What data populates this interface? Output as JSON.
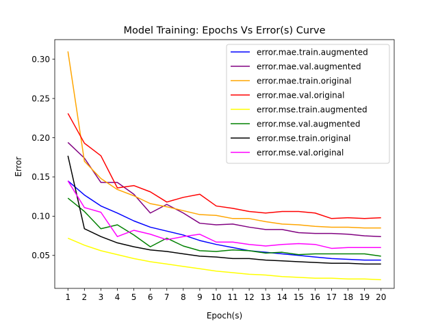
{
  "chart_data": {
    "type": "line",
    "title": "Model Training: Epochs Vs Error(s) Curve",
    "xlabel": "Epoch(s)",
    "ylabel": "Error",
    "x": [
      1,
      2,
      3,
      4,
      5,
      6,
      7,
      8,
      9,
      10,
      11,
      12,
      13,
      14,
      15,
      16,
      17,
      18,
      19,
      20
    ],
    "xlim": [
      0.2,
      20.8
    ],
    "ylim": [
      0.008,
      0.325
    ],
    "yticks": [
      0.05,
      0.1,
      0.15,
      0.2,
      0.25,
      0.3
    ],
    "ytick_labels": [
      "0.05",
      "0.10",
      "0.15",
      "0.20",
      "0.25",
      "0.30"
    ],
    "grid": false,
    "legend_position": "top-right",
    "series": [
      {
        "name": "error.mae.train.augmented",
        "color": "#0000ff",
        "values": [
          0.145,
          0.127,
          0.113,
          0.104,
          0.094,
          0.086,
          0.081,
          0.076,
          0.069,
          0.064,
          0.06,
          0.056,
          0.054,
          0.052,
          0.05,
          0.048,
          0.046,
          0.045,
          0.044,
          0.044
        ]
      },
      {
        "name": "error.mae.val.augmented",
        "color": "#800080",
        "values": [
          0.194,
          0.174,
          0.143,
          0.143,
          0.128,
          0.104,
          0.115,
          0.104,
          0.091,
          0.089,
          0.09,
          0.086,
          0.083,
          0.083,
          0.079,
          0.078,
          0.078,
          0.077,
          0.075,
          0.074
        ]
      },
      {
        "name": "error.mae.train.original",
        "color": "#ffa500",
        "values": [
          0.31,
          0.17,
          0.148,
          0.134,
          0.126,
          0.116,
          0.112,
          0.107,
          0.102,
          0.101,
          0.097,
          0.097,
          0.093,
          0.09,
          0.089,
          0.087,
          0.086,
          0.086,
          0.085,
          0.085
        ]
      },
      {
        "name": "error.mae.val.original",
        "color": "#ff0000",
        "values": [
          0.231,
          0.193,
          0.177,
          0.136,
          0.139,
          0.131,
          0.118,
          0.124,
          0.128,
          0.113,
          0.11,
          0.106,
          0.104,
          0.106,
          0.106,
          0.104,
          0.097,
          0.098,
          0.097,
          0.098
        ]
      },
      {
        "name": "error.mse.train.augmented",
        "color": "#ffff00",
        "values": [
          0.072,
          0.063,
          0.056,
          0.051,
          0.046,
          0.042,
          0.039,
          0.036,
          0.033,
          0.03,
          0.028,
          0.026,
          0.025,
          0.023,
          0.022,
          0.021,
          0.021,
          0.02,
          0.02,
          0.019
        ]
      },
      {
        "name": "error.mse.val.augmented",
        "color": "#008000",
        "values": [
          0.123,
          0.106,
          0.084,
          0.089,
          0.076,
          0.061,
          0.072,
          0.062,
          0.056,
          0.055,
          0.057,
          0.056,
          0.053,
          0.054,
          0.051,
          0.052,
          0.052,
          0.052,
          0.052,
          0.049
        ]
      },
      {
        "name": "error.mse.train.original",
        "color": "#000000",
        "values": [
          0.177,
          0.084,
          0.074,
          0.066,
          0.061,
          0.057,
          0.055,
          0.052,
          0.049,
          0.048,
          0.046,
          0.046,
          0.044,
          0.043,
          0.042,
          0.041,
          0.04,
          0.04,
          0.039,
          0.039
        ]
      },
      {
        "name": "error.mse.val.original",
        "color": "#ff00ff",
        "values": [
          0.145,
          0.111,
          0.105,
          0.074,
          0.082,
          0.077,
          0.07,
          0.074,
          0.077,
          0.067,
          0.067,
          0.064,
          0.062,
          0.064,
          0.065,
          0.064,
          0.059,
          0.06,
          0.06,
          0.06
        ]
      }
    ]
  }
}
